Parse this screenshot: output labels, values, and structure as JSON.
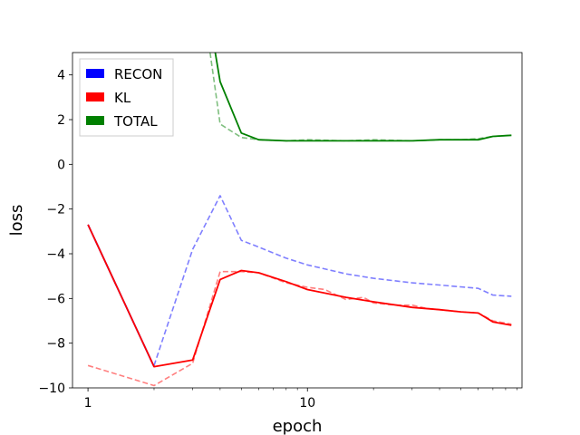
{
  "chart_data": {
    "type": "line",
    "xlabel": "epoch",
    "ylabel": "loss",
    "xscale": "log",
    "xlim": [
      0.85,
      95
    ],
    "ylim": [
      -10,
      5
    ],
    "xticks": [
      {
        "value": 1,
        "label": "1"
      },
      {
        "value": 10,
        "label": "10"
      }
    ],
    "yticks": [
      {
        "value": 4,
        "label": "4"
      },
      {
        "value": 2,
        "label": "2"
      },
      {
        "value": 0,
        "label": "0"
      },
      {
        "value": -2,
        "label": "−2"
      },
      {
        "value": -4,
        "label": "−4"
      },
      {
        "value": -6,
        "label": "−6"
      },
      {
        "value": -8,
        "label": "−8"
      },
      {
        "value": -10,
        "label": "−10"
      }
    ],
    "grid": false,
    "legend_position": "top-left",
    "legend": [
      {
        "name": "RECON",
        "color": "#0000ff"
      },
      {
        "name": "KL",
        "color": "#ff0000"
      },
      {
        "name": "TOTAL",
        "color": "#008000"
      }
    ],
    "series": [
      {
        "name": "RECON (dashed)",
        "color": "#0000ff",
        "style": "dashed",
        "opacity": 0.5,
        "x": [
          2,
          3,
          4,
          5,
          6,
          8,
          10,
          15,
          20,
          30,
          40,
          60,
          70,
          85
        ],
        "y": [
          -9.0,
          -3.8,
          -1.4,
          -3.4,
          -3.7,
          -4.2,
          -4.5,
          -4.9,
          -5.1,
          -5.3,
          -5.4,
          -5.55,
          -5.85,
          -5.9
        ]
      },
      {
        "name": "KL (dashed)",
        "color": "#ff0000",
        "style": "dashed",
        "opacity": 0.5,
        "x": [
          1,
          2,
          3,
          4,
          5,
          6,
          8,
          10,
          12,
          15,
          18,
          20,
          25,
          30,
          35,
          40,
          50,
          60,
          70,
          85
        ],
        "y": [
          -9.0,
          -9.9,
          -8.9,
          -4.8,
          -4.8,
          -4.85,
          -5.3,
          -5.5,
          -5.6,
          -6.05,
          -5.95,
          -6.2,
          -6.3,
          -6.3,
          -6.45,
          -6.5,
          -6.6,
          -6.65,
          -7.0,
          -7.15
        ]
      },
      {
        "name": "TOTAL (dashed)",
        "color": "#008000",
        "style": "dashed",
        "opacity": 0.5,
        "x": [
          3.6,
          4,
          5,
          6,
          8,
          10,
          15,
          20,
          30,
          40,
          50,
          60,
          70,
          85
        ],
        "y": [
          5.0,
          1.8,
          1.2,
          1.1,
          1.05,
          1.1,
          1.05,
          1.1,
          1.05,
          1.1,
          1.1,
          1.15,
          1.25,
          1.3
        ]
      },
      {
        "name": "RECON",
        "color": "#0000ff",
        "style": "solid",
        "opacity": 1,
        "x": [
          1,
          2
        ],
        "y": [
          -2.7,
          -9.05
        ]
      },
      {
        "name": "KL",
        "color": "#ff0000",
        "style": "solid",
        "opacity": 1,
        "x": [
          1,
          2,
          3,
          4,
          5,
          6,
          8,
          10,
          15,
          20,
          30,
          40,
          50,
          60,
          70,
          85
        ],
        "y": [
          -2.7,
          -9.05,
          -8.75,
          -5.15,
          -4.75,
          -4.85,
          -5.25,
          -5.6,
          -5.95,
          -6.15,
          -6.4,
          -6.5,
          -6.6,
          -6.65,
          -7.05,
          -7.2
        ]
      },
      {
        "name": "TOTAL",
        "color": "#008000",
        "style": "solid",
        "opacity": 1,
        "x": [
          3.8,
          4,
          5,
          6,
          8,
          10,
          15,
          20,
          30,
          40,
          50,
          60,
          70,
          85
        ],
        "y": [
          5.0,
          3.7,
          1.4,
          1.1,
          1.05,
          1.05,
          1.05,
          1.05,
          1.05,
          1.1,
          1.1,
          1.1,
          1.25,
          1.3
        ]
      }
    ]
  }
}
